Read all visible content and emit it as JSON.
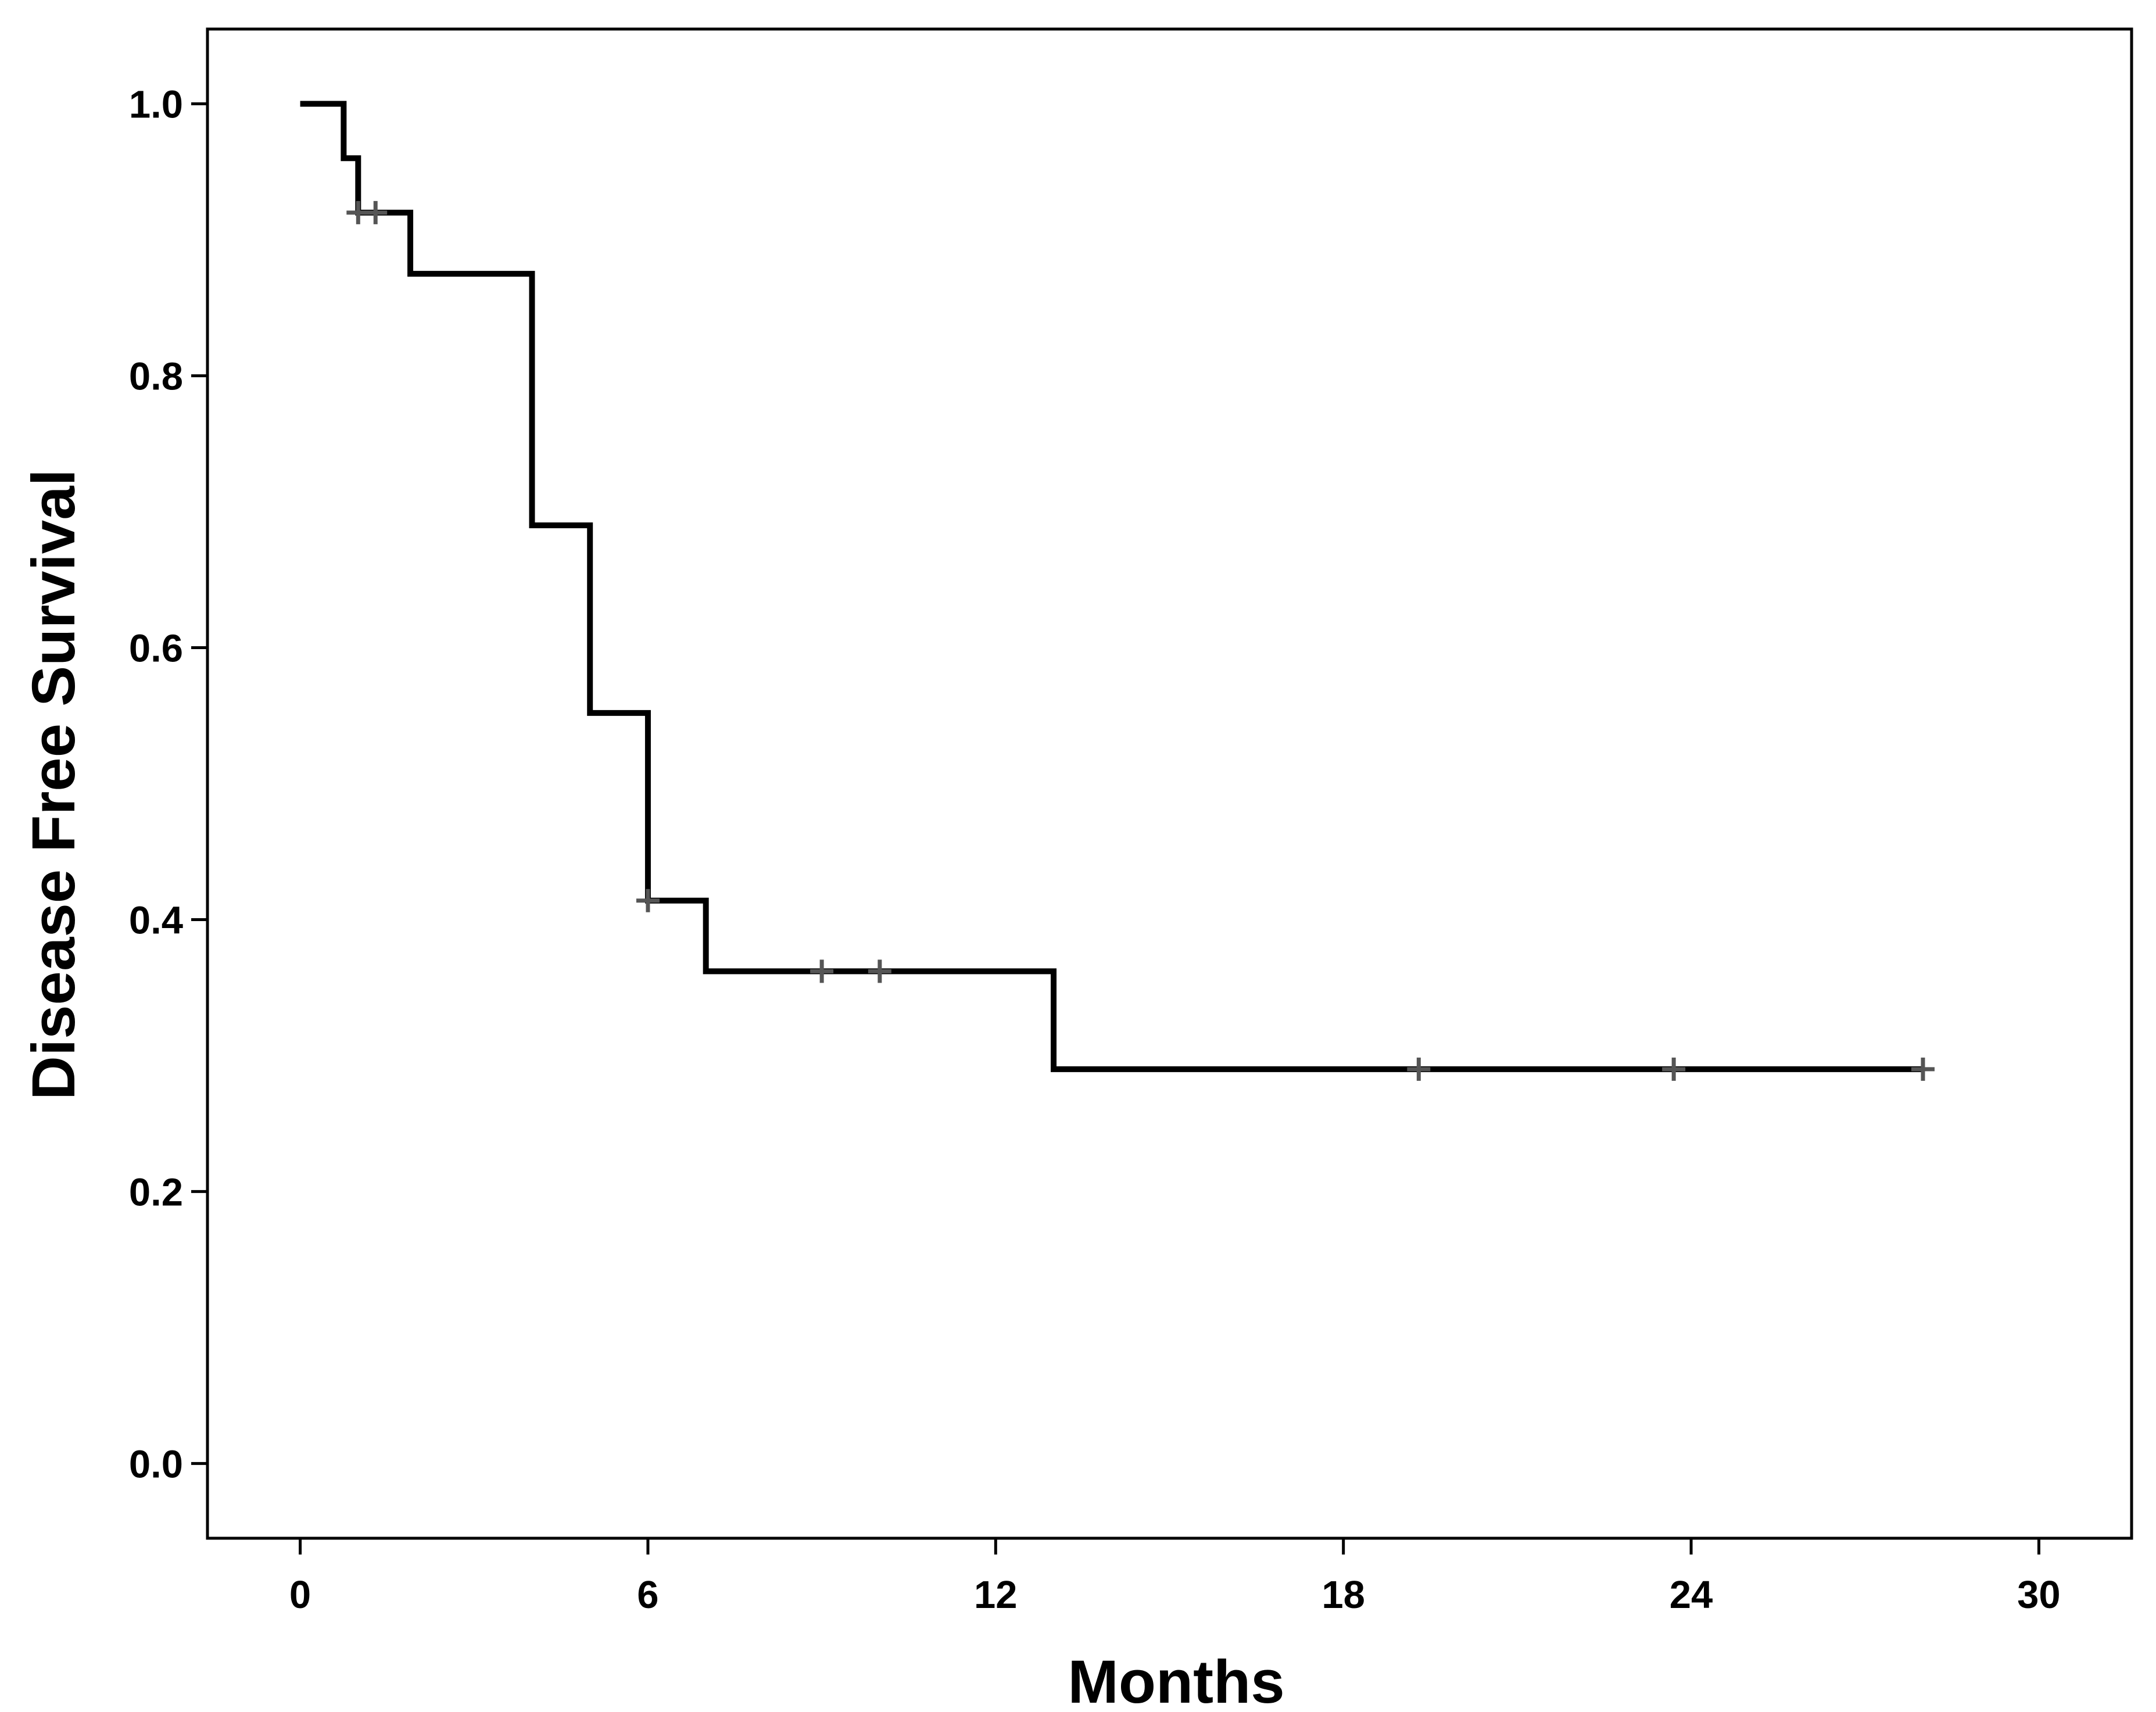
{
  "chart_data": {
    "type": "line",
    "step": true,
    "xlabel": "Months",
    "ylabel": "Disease Free Survival",
    "xlim": [
      -1.6,
      31.6
    ],
    "ylim": [
      -0.055,
      1.055
    ],
    "xticks": [
      0,
      6,
      12,
      18,
      24,
      30
    ],
    "xtick_labels": [
      "0",
      "6",
      "12",
      "18",
      "24",
      "30"
    ],
    "yticks": [
      0.0,
      0.2,
      0.4,
      0.6,
      0.8,
      1.0
    ],
    "ytick_labels": [
      "0.0",
      "0.2",
      "0.4",
      "0.6",
      "0.8",
      "1.0"
    ],
    "grid": false,
    "series": [
      {
        "line_color": "#000000",
        "censor_color": "#555555",
        "steps": [
          {
            "x": 0.0,
            "y": 1.0
          },
          {
            "x": 0.75,
            "y": 0.96
          },
          {
            "x": 1.0,
            "y": 0.92
          },
          {
            "x": 1.9,
            "y": 0.875
          },
          {
            "x": 4.0,
            "y": 0.69
          },
          {
            "x": 5.0,
            "y": 0.552
          },
          {
            "x": 6.0,
            "y": 0.414
          },
          {
            "x": 7.0,
            "y": 0.362
          },
          {
            "x": 13.0,
            "y": 0.29
          }
        ],
        "end_x": 28.0,
        "censored": [
          {
            "x": 1.0,
            "y": 0.92
          },
          {
            "x": 1.3,
            "y": 0.92
          },
          {
            "x": 6.0,
            "y": 0.414
          },
          {
            "x": 9.0,
            "y": 0.362
          },
          {
            "x": 10.0,
            "y": 0.362
          },
          {
            "x": 19.3,
            "y": 0.29
          },
          {
            "x": 23.7,
            "y": 0.29
          },
          {
            "x": 28.0,
            "y": 0.29
          }
        ]
      }
    ]
  }
}
